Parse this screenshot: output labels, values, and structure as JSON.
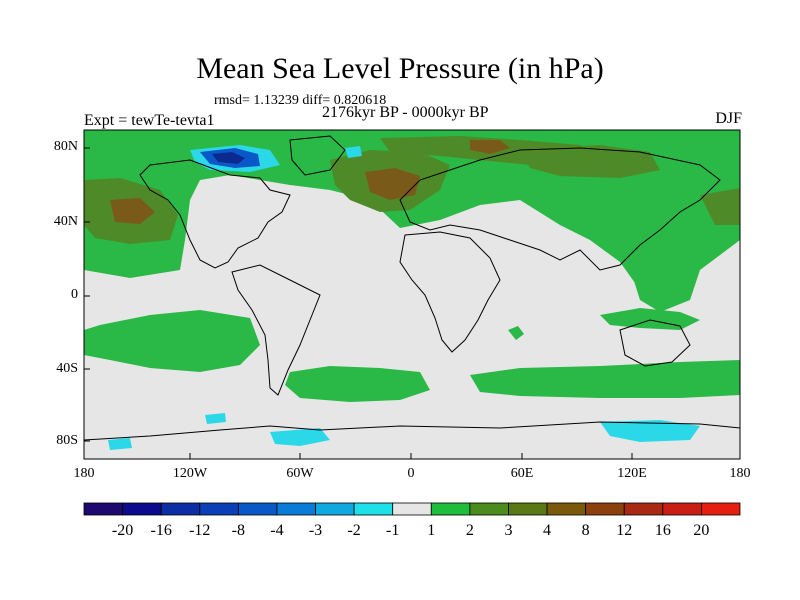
{
  "title": "Mean Sea Level Pressure (in hPa)",
  "stats": "rmsd= 1.13239 diff= 0.820618",
  "experiment": "Expt = tewTe-tevta1",
  "subtitle": "2176kyr BP - 0000kyr BP",
  "season": "DJF",
  "lat_labels": [
    "80N",
    "40N",
    "0",
    "40S",
    "80S"
  ],
  "lon_labels": [
    "180",
    "120W",
    "60W",
    "0",
    "60E",
    "120E",
    "180"
  ],
  "colorbar": {
    "labels": [
      "-20",
      "-16",
      "-12",
      "-8",
      "-4",
      "-3",
      "-2",
      "-1",
      "1",
      "2",
      "3",
      "4",
      "8",
      "12",
      "16",
      "20"
    ],
    "colors": [
      "#1e0a6e",
      "#0a0a8c",
      "#0c2ea4",
      "#0a3fb8",
      "#0a58c8",
      "#0a7cd8",
      "#10a8e0",
      "#1ee0e8",
      "#e6e6e6",
      "#1ebe3c",
      "#4c8c1e",
      "#5a7814",
      "#7a5a0a",
      "#8c4010",
      "#a82814",
      "#c81e14",
      "#e61e10"
    ]
  },
  "colors": {
    "neutral": "#e6e6e6",
    "positive_light": "#2ab846",
    "positive_mid": "#4f8a28",
    "positive_high": "#7a5a18",
    "negative_light": "#2ad8e8",
    "negative_mid": "#0a58c8",
    "negative_high": "#0a2a90"
  }
}
